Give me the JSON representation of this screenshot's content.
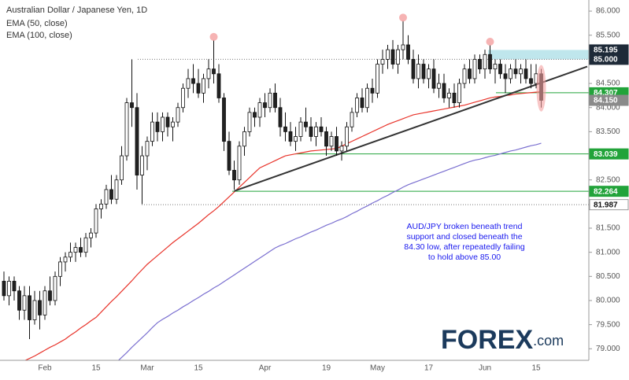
{
  "chart_data": {
    "type": "candlestick",
    "title": "Australian Dollar / Japanese Yen, 1D",
    "categories": [
      null,
      null,
      null,
      null,
      null,
      null,
      null,
      null,
      "Feb",
      null,
      null,
      null,
      null,
      null,
      null,
      null,
      null,
      null,
      "15",
      null,
      null,
      null,
      null,
      null,
      null,
      null,
      null,
      null,
      "Mar",
      null,
      null,
      null,
      null,
      null,
      null,
      null,
      null,
      null,
      "15",
      null,
      null,
      null,
      null,
      null,
      null,
      null,
      null,
      null,
      null,
      null,
      null,
      "Apr",
      null,
      null,
      null,
      null,
      null,
      null,
      null,
      null,
      null,
      null,
      null,
      "19",
      null,
      null,
      null,
      null,
      null,
      null,
      null,
      null,
      null,
      "May",
      null,
      null,
      null,
      null,
      null,
      null,
      null,
      null,
      null,
      "17",
      null,
      null,
      null,
      null,
      null,
      null,
      null,
      null,
      null,
      null,
      "Jun",
      null,
      null,
      null,
      null,
      null,
      null,
      null,
      null,
      null,
      "15",
      null
    ],
    "candles": {
      "open": [
        80.4,
        80.1,
        80.4,
        80.2,
        79.8,
        80.1,
        79.6,
        80.0,
        79.7,
        80.2,
        80.0,
        80.5,
        80.8,
        80.9,
        81.0,
        81.1,
        81.0,
        81.3,
        81.4,
        81.9,
        82.0,
        82.3,
        82.1,
        82.5,
        83.0,
        84.1,
        84.0,
        82.6,
        83.0,
        83.3,
        83.7,
        83.5,
        83.8,
        83.6,
        83.7,
        84.0,
        84.4,
        84.6,
        84.5,
        84.3,
        84.6,
        84.8,
        84.7,
        84.2,
        83.3,
        82.7,
        82.5,
        83.2,
        83.5,
        83.9,
        83.8,
        84.1,
        84.0,
        84.3,
        84.0,
        83.6,
        83.5,
        83.3,
        83.4,
        83.7,
        83.6,
        83.4,
        83.6,
        83.5,
        83.2,
        83.4,
        83.1,
        83.2,
        83.6,
        83.9,
        84.2,
        84.0,
        84.4,
        84.3,
        84.9,
        85.0,
        85.2,
        84.9,
        85.2,
        85.3,
        85.0,
        84.6,
        84.9,
        84.6,
        84.8,
        84.4,
        84.5,
        84.2,
        84.3,
        84.1,
        84.5,
        84.8,
        84.6,
        85.0,
        84.8,
        85.1,
        84.8,
        84.9,
        84.7,
        84.6,
        84.8,
        84.7,
        84.8,
        84.6,
        84.5,
        84.7
      ],
      "high": [
        80.6,
        80.5,
        80.5,
        80.3,
        80.3,
        80.3,
        80.2,
        80.2,
        80.3,
        80.5,
        80.6,
        80.9,
        81.0,
        81.2,
        81.2,
        81.3,
        81.4,
        81.5,
        82.0,
        82.1,
        82.4,
        82.6,
        82.6,
        83.2,
        84.2,
        85.0,
        84.3,
        83.2,
        83.4,
        83.9,
        83.9,
        83.9,
        83.9,
        83.8,
        84.1,
        84.5,
        84.8,
        84.9,
        84.8,
        84.7,
        85.0,
        85.4,
        84.9,
        84.3,
        83.5,
        82.9,
        83.3,
        83.6,
        84.0,
        84.0,
        84.2,
        84.3,
        84.4,
        84.5,
        84.2,
        83.9,
        83.7,
        83.6,
        83.8,
        84.0,
        83.8,
        83.7,
        83.8,
        83.6,
        83.5,
        83.6,
        83.3,
        83.7,
        84.0,
        84.3,
        84.4,
        84.5,
        84.6,
        85.0,
        85.2,
        85.3,
        85.4,
        85.3,
        85.8,
        85.5,
        85.2,
        85.1,
        85.0,
        84.9,
        85.0,
        84.7,
        84.7,
        84.4,
        84.5,
        84.6,
        84.9,
        85.0,
        85.1,
        85.1,
        85.2,
        85.3,
        85.0,
        85.0,
        84.9,
        84.9,
        85.0,
        84.9,
        85.0,
        84.9,
        84.9,
        84.8
      ],
      "low": [
        80.0,
        79.9,
        80.0,
        79.6,
        79.6,
        79.2,
        79.5,
        79.4,
        79.6,
        79.9,
        79.9,
        80.3,
        80.6,
        80.8,
        80.8,
        80.9,
        80.9,
        81.1,
        81.3,
        81.7,
        81.9,
        82.0,
        82.0,
        82.4,
        82.9,
        83.6,
        82.3,
        82.0,
        82.7,
        83.2,
        83.3,
        83.3,
        83.4,
        83.3,
        83.6,
        83.9,
        84.2,
        84.3,
        84.2,
        84.1,
        84.4,
        84.5,
        84.1,
        83.1,
        82.6,
        82.3,
        82.4,
        83.0,
        83.4,
        83.6,
        83.6,
        83.8,
        83.9,
        83.9,
        83.4,
        83.3,
        83.2,
        83.1,
        83.3,
        83.5,
        83.3,
        83.2,
        83.4,
        83.0,
        83.1,
        83.0,
        82.9,
        83.1,
        83.5,
        83.8,
        83.9,
        83.9,
        84.1,
        84.2,
        84.7,
        84.8,
        84.8,
        84.7,
        85.0,
        84.9,
        84.5,
        84.4,
        84.5,
        84.4,
        84.3,
        84.2,
        84.1,
        84.0,
        84.0,
        84.0,
        84.4,
        84.5,
        84.5,
        84.7,
        84.6,
        84.7,
        84.5,
        84.6,
        84.3,
        84.5,
        84.6,
        84.5,
        84.5,
        84.4,
        84.4,
        84.0
      ],
      "close": [
        80.1,
        80.4,
        80.2,
        79.8,
        80.1,
        79.6,
        80.0,
        79.7,
        80.2,
        80.0,
        80.5,
        80.8,
        80.9,
        81.0,
        81.1,
        81.0,
        81.3,
        81.4,
        81.9,
        82.0,
        82.3,
        82.1,
        82.5,
        83.0,
        84.1,
        84.0,
        82.6,
        83.0,
        83.3,
        83.7,
        83.5,
        83.8,
        83.6,
        83.7,
        84.0,
        84.4,
        84.6,
        84.5,
        84.3,
        84.6,
        84.8,
        84.7,
        84.2,
        83.3,
        82.7,
        82.5,
        83.2,
        83.5,
        83.9,
        83.8,
        84.1,
        84.0,
        84.3,
        84.0,
        83.6,
        83.5,
        83.3,
        83.4,
        83.7,
        83.6,
        83.4,
        83.6,
        83.5,
        83.2,
        83.4,
        83.1,
        83.2,
        83.6,
        83.9,
        84.2,
        84.0,
        84.4,
        84.3,
        84.9,
        85.0,
        85.2,
        84.9,
        85.2,
        85.3,
        85.0,
        84.6,
        84.9,
        84.6,
        84.8,
        84.4,
        84.5,
        84.2,
        84.3,
        84.1,
        84.5,
        84.8,
        84.6,
        85.0,
        84.8,
        85.1,
        84.8,
        84.9,
        84.7,
        84.6,
        84.8,
        84.7,
        84.8,
        84.6,
        84.5,
        84.7,
        84.15
      ],
      "up_color": "#ffffff",
      "down_color": "#222222",
      "edge_color": "#111111"
    },
    "series": [
      {
        "name": "EMA (50, close)",
        "color": "#e8332a",
        "values": [
          78.55,
          78.6,
          78.65,
          78.7,
          78.75,
          78.8,
          78.85,
          78.91,
          78.97,
          79.03,
          79.08,
          79.14,
          79.2,
          79.28,
          79.35,
          79.43,
          79.5,
          79.58,
          79.65,
          79.76,
          79.87,
          79.98,
          80.08,
          80.19,
          80.3,
          80.41,
          80.53,
          80.64,
          80.75,
          80.84,
          80.93,
          81.02,
          81.11,
          81.2,
          81.28,
          81.36,
          81.44,
          81.52,
          81.6,
          81.69,
          81.78,
          81.86,
          81.95,
          82.05,
          82.15,
          82.25,
          82.35,
          82.45,
          82.55,
          82.65,
          82.75,
          82.8,
          82.85,
          82.9,
          82.95,
          83.0,
          83.02,
          83.04,
          83.06,
          83.08,
          83.1,
          83.11,
          83.12,
          83.13,
          83.14,
          83.15,
          83.2,
          83.25,
          83.3,
          83.35,
          83.4,
          83.45,
          83.5,
          83.55,
          83.6,
          83.65,
          83.69,
          83.73,
          83.77,
          83.81,
          83.85,
          83.87,
          83.89,
          83.91,
          83.93,
          83.95,
          83.97,
          83.99,
          84.01,
          84.03,
          84.05,
          84.08,
          84.11,
          84.14,
          84.17,
          84.2,
          84.22,
          84.23,
          84.25,
          84.26,
          84.28,
          84.29,
          84.3,
          84.31,
          84.32,
          84.33
        ]
      },
      {
        "name": "EMA (100, close)",
        "color": "#7a6fd0",
        "values": [
          null,
          null,
          null,
          null,
          null,
          null,
          null,
          null,
          null,
          null,
          null,
          null,
          null,
          null,
          null,
          null,
          null,
          null,
          null,
          null,
          null,
          null,
          78.72,
          78.82,
          78.92,
          79.03,
          79.13,
          79.23,
          79.33,
          79.44,
          79.54,
          79.61,
          79.67,
          79.74,
          79.8,
          79.87,
          79.93,
          80.0,
          80.06,
          80.13,
          80.19,
          80.26,
          80.32,
          80.39,
          80.46,
          80.53,
          80.6,
          80.67,
          80.74,
          80.81,
          80.88,
          80.95,
          81.02,
          81.09,
          81.14,
          81.18,
          81.23,
          81.28,
          81.32,
          81.37,
          81.42,
          81.46,
          81.51,
          81.56,
          81.6,
          81.65,
          81.69,
          81.74,
          81.8,
          81.85,
          81.91,
          81.96,
          82.02,
          82.07,
          82.13,
          82.18,
          82.24,
          82.29,
          82.35,
          82.4,
          82.44,
          82.48,
          82.52,
          82.56,
          82.6,
          82.64,
          82.68,
          82.72,
          82.76,
          82.8,
          82.84,
          82.88,
          82.91,
          82.93,
          82.96,
          82.99,
          83.01,
          83.04,
          83.07,
          83.1,
          83.12,
          83.15,
          83.18,
          83.21,
          83.23,
          83.26
        ]
      }
    ],
    "ylim": [
      78.76,
      86.23
    ],
    "yticks": [
      {
        "value": 79,
        "label": "79.000"
      },
      {
        "value": 79.5,
        "label": "79.500"
      },
      {
        "value": 80,
        "label": "80.000"
      },
      {
        "value": 80.5,
        "label": "80.500"
      },
      {
        "value": 81,
        "label": "81.000"
      },
      {
        "value": 81.5,
        "label": "81.500"
      },
      {
        "value": 82,
        "label": "82.000"
      },
      {
        "value": 82.5,
        "label": "82.500"
      },
      {
        "value": 83,
        "label": "83.000"
      },
      {
        "value": 83.5,
        "label": "83.500"
      },
      {
        "value": 84,
        "label": "84.000"
      },
      {
        "value": 84.5,
        "label": "84.500"
      },
      {
        "value": 85,
        "label": "85.000"
      },
      {
        "value": 85.5,
        "label": "85.500"
      },
      {
        "value": 86,
        "label": "86.000"
      }
    ],
    "grid": false,
    "levels": [
      {
        "value": 85.195,
        "label": "85.195",
        "color": "#1e2a38",
        "style": "zone"
      },
      {
        "value": 85,
        "label": "85.000",
        "color": "#1e2a38",
        "style": "dotted"
      },
      {
        "value": 84.307,
        "label": "84.307",
        "color": "#22a33a",
        "style": "solid"
      },
      {
        "value": 84.15,
        "label": "84.150",
        "color": "#8a8a8a",
        "style": "none"
      },
      {
        "value": 83.039,
        "label": "83.039",
        "color": "#22a33a",
        "style": "solid"
      },
      {
        "value": 82.264,
        "label": "82.264",
        "color": "#22a33a",
        "style": "solid"
      },
      {
        "value": 81.987,
        "label": "81.987",
        "color": "#ffffff",
        "style": "dotted"
      }
    ],
    "trendline": {
      "start": {
        "x": 45,
        "value": 82.27
      },
      "end": {
        "x": 114,
        "value": 84.85
      },
      "color": "#333333"
    },
    "annotation": [
      "AUD/JPY broken beneath trend",
      "support and closed beneath the",
      "84.30 low, after repeatedly failing",
      "to hold above 85.00"
    ],
    "logo": "FOREX",
    "logo_suffix": ".com"
  }
}
